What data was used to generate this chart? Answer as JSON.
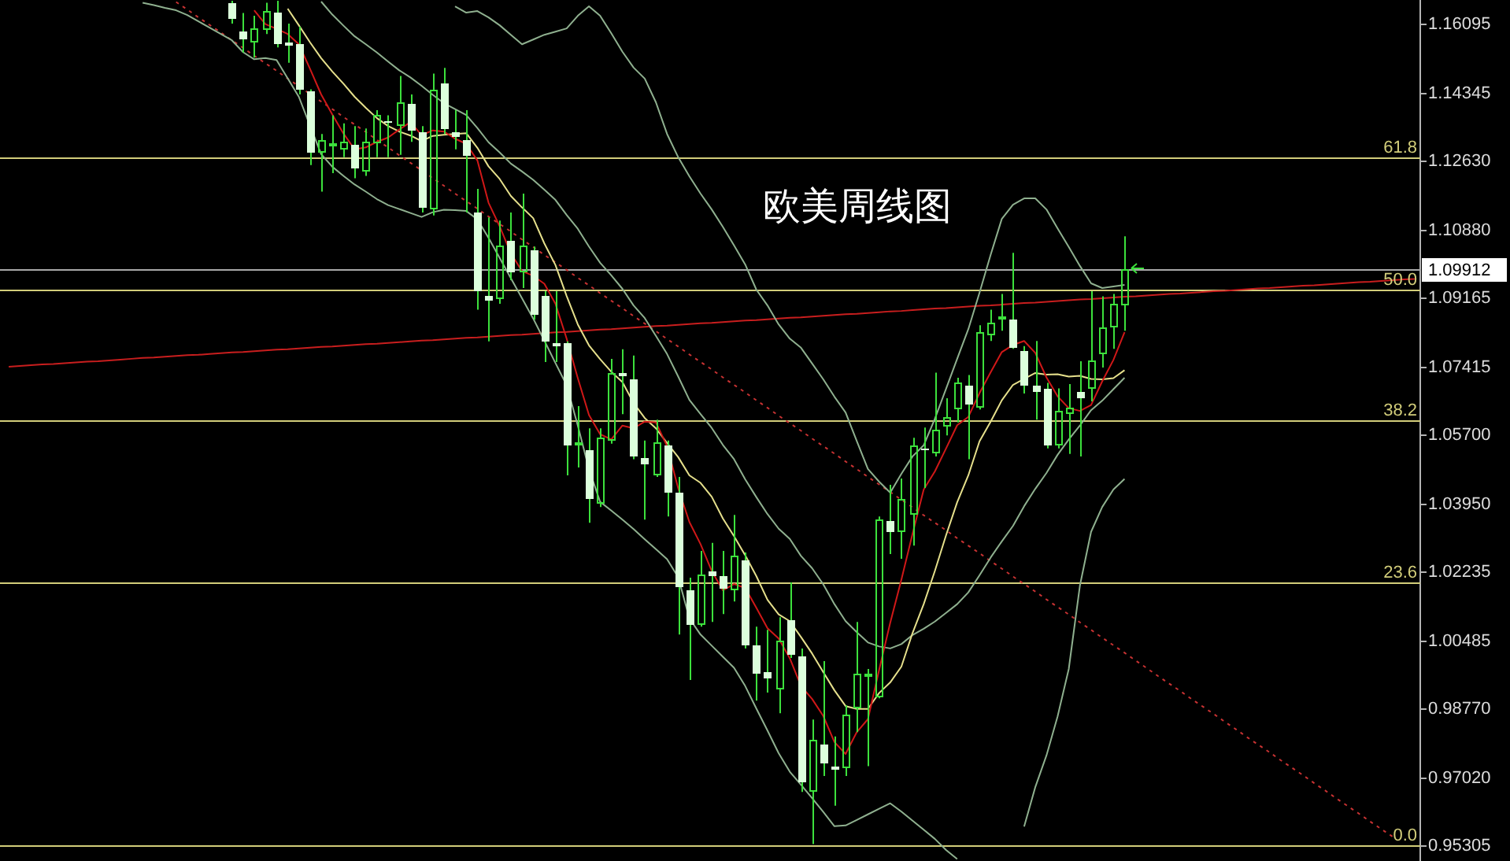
{
  "chart_data": {
    "type": "candlestick",
    "title": "欧美周线图",
    "categories": [
      null,
      null,
      null,
      null,
      null,
      null,
      null,
      null,
      null,
      null,
      null,
      null,
      null,
      null,
      null,
      null,
      null,
      null,
      null,
      null,
      null,
      null,
      null,
      null,
      null,
      null,
      null,
      null,
      null,
      null,
      null,
      null,
      null,
      null,
      null,
      null,
      null,
      null,
      null,
      null,
      null,
      null,
      null,
      null,
      null,
      null,
      null,
      null,
      null,
      null,
      null,
      null,
      null,
      null,
      null,
      null,
      null,
      null,
      null,
      null,
      null,
      null,
      null,
      null,
      null,
      null,
      null,
      null,
      null,
      null,
      null,
      null,
      null,
      null,
      null,
      null,
      null,
      null,
      null,
      null,
      null,
      null,
      null,
      null,
      null,
      null,
      null,
      null,
      null,
      null,
      null,
      null,
      null,
      null,
      null,
      null,
      null,
      null,
      null,
      null,
      null,
      null,
      null,
      null,
      null,
      null,
      null,
      null,
      null,
      null,
      null,
      null,
      null,
      null,
      null,
      null,
      null,
      null,
      null,
      null,
      null,
      null,
      null,
      null,
      null,
      null,
      null
    ],
    "ohlc": [
      null,
      null,
      null,
      null,
      null,
      null,
      null,
      null,
      null,
      null,
      null,
      null,
      null,
      null,
      null,
      null,
      null,
      null,
      null,
      null,
      [
        1.1666,
        1.167,
        1.1612,
        1.1623
      ],
      [
        1.1592,
        1.1639,
        1.1539,
        1.1572
      ],
      [
        1.1566,
        1.1632,
        1.1526,
        1.1599
      ],
      [
        1.1595,
        1.1665,
        1.1586,
        1.1643
      ],
      [
        1.1639,
        1.167,
        1.1552,
        1.1559
      ],
      [
        1.1566,
        1.1612,
        1.1513,
        1.1555
      ],
      [
        1.1559,
        1.1605,
        1.1433,
        1.1446
      ],
      [
        1.144,
        1.1446,
        1.1254,
        1.1287
      ],
      [
        1.1287,
        1.1333,
        1.1187,
        1.1316
      ],
      [
        1.1305,
        1.138,
        1.1234,
        1.1308
      ],
      [
        1.1294,
        1.136,
        1.1274,
        1.1313
      ],
      [
        1.1307,
        1.1353,
        1.1221,
        1.1247
      ],
      [
        1.1237,
        1.1347,
        1.1227,
        1.1313
      ],
      [
        1.1311,
        1.1393,
        1.1274,
        1.1382
      ],
      [
        1.1366,
        1.138,
        1.1274,
        1.1363
      ],
      [
        1.1353,
        1.148,
        1.128,
        1.1413
      ],
      [
        1.1409,
        1.1433,
        1.1313,
        1.1343
      ],
      [
        1.1337,
        1.1353,
        1.1134,
        1.1147
      ],
      [
        1.1141,
        1.1486,
        1.1127,
        1.1446
      ],
      [
        1.146,
        1.15,
        1.1333,
        1.1347
      ],
      [
        1.1337,
        1.1393,
        1.1294,
        1.1324
      ],
      [
        1.1316,
        1.1393,
        1.1134,
        1.1276
      ],
      [
        1.1134,
        1.1194,
        1.0888,
        1.0935
      ],
      [
        1.0923,
        1.1122,
        1.0808,
        1.0911
      ],
      [
        1.0915,
        1.1114,
        1.0903,
        1.1051
      ],
      [
        1.1062,
        1.1134,
        1.0963,
        1.0983
      ],
      [
        1.0984,
        1.1182,
        1.0943,
        1.1051
      ],
      [
        1.1037,
        1.1048,
        1.0863,
        1.0875
      ],
      [
        1.0923,
        1.0935,
        1.0756,
        1.0809
      ],
      [
        1.0804,
        1.0935,
        1.0756,
        1.0796
      ],
      [
        1.0804,
        1.0808,
        1.0469,
        1.0545
      ],
      [
        1.0547,
        1.0644,
        1.0489,
        1.0551
      ],
      [
        1.0533,
        1.0588,
        1.0349,
        1.0409
      ],
      [
        1.0397,
        1.0588,
        1.0389,
        1.0564
      ],
      [
        1.0557,
        1.0764,
        1.0549,
        1.0729
      ],
      [
        1.0728,
        1.0788,
        1.0624,
        1.072
      ],
      [
        1.0713,
        1.0772,
        1.051,
        1.0517
      ],
      [
        1.0514,
        1.0557,
        1.0357,
        1.0497
      ],
      [
        1.047,
        1.061,
        1.0465,
        1.0554
      ],
      [
        1.0545,
        1.0557,
        1.0365,
        1.0426
      ],
      [
        1.0425,
        1.0465,
        1.0066,
        1.0186
      ],
      [
        1.0178,
        1.021,
        0.9951,
        1.009
      ],
      [
        1.009,
        1.0278,
        1.0086,
        1.0218
      ],
      [
        1.0226,
        1.0298,
        1.0098,
        1.0214
      ],
      [
        1.0214,
        1.0278,
        1.0118,
        1.0182
      ],
      [
        1.0178,
        1.0369,
        1.015,
        1.0266
      ],
      [
        1.0254,
        1.0274,
        1.0031,
        1.0039
      ],
      [
        1.0039,
        1.0086,
        0.9899,
        0.9967
      ],
      [
        0.9971,
        1.0078,
        0.9919,
        0.9956
      ],
      [
        0.9927,
        1.011,
        0.9867,
        1.0051
      ],
      [
        1.0102,
        1.0198,
        1.0007,
        1.0015
      ],
      [
        1.0011,
        1.0031,
        0.9668,
        0.9693
      ],
      [
        0.9668,
        0.9851,
        0.9536,
        0.98
      ],
      [
        0.9788,
        0.9999,
        0.9708,
        0.974
      ],
      [
        0.9733,
        0.9808,
        0.9633,
        0.9723
      ],
      [
        0.9728,
        0.9887,
        0.9708,
        0.9863
      ],
      [
        0.9879,
        1.0098,
        0.9819,
        0.9967
      ],
      [
        0.9966,
        0.9979,
        0.9733,
        0.9968
      ],
      [
        0.9907,
        1.0365,
        0.9905,
        1.0357
      ],
      [
        1.0353,
        1.0445,
        1.027,
        1.0325
      ],
      [
        1.0324,
        1.0461,
        1.0258,
        1.041
      ],
      [
        1.037,
        1.0564,
        1.0291,
        1.0543
      ],
      [
        1.0535,
        1.059,
        1.0437,
        1.0532
      ],
      [
        1.0523,
        1.0729,
        1.0517,
        1.0586
      ],
      [
        1.0592,
        1.0664,
        1.057,
        1.0616
      ],
      [
        1.0636,
        1.0716,
        1.0603,
        1.0703
      ],
      [
        1.0696,
        1.0723,
        1.051,
        1.0647
      ],
      [
        1.0639,
        1.0849,
        1.0636,
        1.0831
      ],
      [
        1.0822,
        1.0888,
        1.0809,
        1.0855
      ],
      [
        1.0867,
        1.0928,
        1.0835,
        1.087
      ],
      [
        1.0864,
        1.1032,
        1.0789,
        1.0793
      ],
      [
        1.0782,
        1.0796,
        1.0676,
        1.0696
      ],
      [
        1.0695,
        1.0809,
        1.061,
        1.0681
      ],
      [
        1.0687,
        1.0703,
        1.0537,
        1.0543
      ],
      [
        1.0543,
        1.0689,
        1.0537,
        1.0633
      ],
      [
        1.0623,
        1.07,
        1.0523,
        1.064
      ],
      [
        1.068,
        1.0758,
        1.0517,
        1.0663
      ],
      [
        1.0689,
        1.0935,
        1.0656,
        1.0758
      ],
      [
        1.0776,
        1.0922,
        1.0742,
        1.0842
      ],
      [
        1.0842,
        1.0928,
        1.0789,
        1.0902
      ],
      [
        1.0898,
        1.1074,
        1.0835,
        1.09912
      ],
      null,
      null,
      null,
      null,
      null,
      null,
      null,
      null,
      null,
      null,
      null,
      null,
      null,
      null,
      null,
      null,
      null,
      null,
      null,
      null,
      null,
      null,
      null,
      null,
      null,
      null
    ],
    "color": "#3ce03c",
    "colors": [
      null,
      null,
      null,
      null,
      null,
      null,
      null,
      null,
      null,
      null,
      null,
      null,
      null,
      null,
      null,
      null,
      null,
      null,
      null,
      null,
      "#dcffdc",
      "#dcffdc",
      "#3ce03c",
      "#3ce03c",
      "#dcffdc",
      "#dcffdc",
      "#dcffdc",
      "#dcffdc",
      "#3ce03c",
      "#3ce03c",
      "#3ce03c",
      "#dcffdc",
      "#3ce03c",
      "#3ce03c",
      "#dcffdc",
      "#3ce03c",
      "#dcffdc",
      "#dcffdc",
      "#3ce03c",
      "#dcffdc",
      "#dcffdc",
      "#dcffdc",
      "#dcffdc",
      "#dcffdc",
      "#3ce03c",
      "#dcffdc",
      "#3ce03c",
      "#dcffdc",
      "#dcffdc",
      "#dcffdc",
      "#dcffdc",
      "#3ce03c",
      "#dcffdc",
      "#3ce03c",
      "#3ce03c",
      "#dcffdc",
      "#dcffdc",
      "#dcffdc",
      "#3ce03c",
      "#dcffdc",
      "#dcffdc",
      "#dcffdc",
      "#3ce03c",
      "#dcffdc",
      "#dcffdc",
      "#3ce03c",
      "#dcffdc",
      "#dcffdc",
      "#dcffdc",
      "#3ce03c",
      "#dcffdc",
      "#dcffdc",
      "#3ce03c",
      "#dcffdc",
      "#dcffdc",
      "#3ce03c",
      "#3ce03c",
      "#3ce03c",
      "#3ce03c",
      "#dcffdc",
      "#3ce03c",
      "#3ce03c",
      "#dcffdc",
      "#3ce03c",
      "#3ce03c",
      "#3ce03c",
      "#dcffdc",
      "#3ce03c",
      "#3ce03c",
      "#3ce03c",
      "#dcffdc",
      "#dcffdc",
      "#dcffdc",
      "#dcffdc",
      "#3ce03c",
      "#3ce03c",
      "#dcffdc",
      "#3ce03c",
      "#3ce03c",
      "#3ce03c",
      "#3ce03c",
      null,
      null,
      null,
      null,
      null,
      null,
      null,
      null,
      null,
      null,
      null,
      null,
      null,
      null,
      null,
      null,
      null,
      null,
      null,
      null,
      null,
      null,
      null,
      null,
      null,
      null
    ],
    "series": [
      {
        "type": "line",
        "color": "#d01818",
        "values": [
          null,
          null,
          null,
          null,
          null,
          null,
          null,
          null,
          null,
          null,
          null,
          null,
          null,
          null,
          null,
          null,
          null,
          null,
          null,
          null,
          null,
          null,
          1.1646,
          1.1611,
          1.1599,
          1.1586,
          1.156,
          1.1498,
          1.1433,
          1.1382,
          1.1334,
          1.1294,
          1.1299,
          1.1313,
          1.1324,
          1.1344,
          1.1363,
          1.133,
          1.1342,
          1.1339,
          1.1321,
          1.1308,
          1.1266,
          1.1159,
          1.1099,
          1.1031,
          1.0986,
          1.0974,
          1.0954,
          1.0903,
          1.0815,
          1.0715,
          1.0622,
          1.0573,
          1.056,
          1.0595,
          1.0588,
          1.0605,
          1.0603,
          1.0543,
          1.0436,
          1.0351,
          1.0295,
          1.0227,
          1.0178,
          1.0194,
          1.0184,
          1.0134,
          1.0082,
          1.0056,
          1.0006,
          0.9936,
          0.9903,
          0.986,
          0.9794,
          0.9764,
          0.9819,
          0.9852,
          0.9976,
          1.0096,
          1.0205,
          1.0321,
          1.0433,
          1.0479,
          1.0537,
          1.0596,
          1.0617,
          1.0677,
          1.073,
          1.0781,
          1.0799,
          1.0809,
          1.0779,
          1.0717,
          1.0669,
          1.0639,
          1.0632,
          1.0647,
          1.0707,
          1.0761,
          1.0831,
          null,
          null,
          null,
          null,
          null,
          null,
          null,
          null,
          null,
          null,
          null,
          null,
          null,
          null,
          null,
          null,
          null,
          null,
          null,
          null,
          null,
          null,
          null,
          null,
          null,
          null
        ]
      },
      {
        "type": "line",
        "color": "#e6e08c",
        "values": [
          null,
          null,
          null,
          null,
          null,
          null,
          null,
          null,
          null,
          null,
          null,
          null,
          null,
          null,
          null,
          null,
          null,
          null,
          null,
          null,
          null,
          null,
          null,
          null,
          null,
          1.165,
          1.1608,
          1.1565,
          1.1525,
          1.1491,
          1.146,
          1.1427,
          1.1399,
          1.1373,
          1.1353,
          1.1339,
          1.1329,
          1.1315,
          1.1328,
          1.1331,
          1.1333,
          1.1335,
          1.1298,
          1.1251,
          1.1219,
          1.1176,
          1.1147,
          1.112,
          1.1056,
          1.1001,
          1.0923,
          1.0851,
          1.0798,
          1.0763,
          1.0731,
          1.0705,
          1.0652,
          1.0614,
          1.0588,
          1.0551,
          1.0515,
          1.0469,
          1.045,
          1.0415,
          1.036,
          1.0315,
          1.0267,
          1.0214,
          1.0154,
          1.0117,
          1.01,
          1.006,
          1.0018,
          0.9971,
          0.9925,
          0.9885,
          0.9878,
          0.9878,
          0.9918,
          0.9945,
          0.9985,
          1.007,
          1.0143,
          1.0227,
          1.0317,
          1.0401,
          1.0469,
          1.0555,
          1.0605,
          1.0659,
          1.0698,
          1.0713,
          1.0728,
          1.0724,
          1.0725,
          1.0719,
          1.0721,
          1.0713,
          1.0712,
          1.0715,
          1.0735,
          null,
          null,
          null,
          null,
          null,
          null,
          null,
          null,
          null,
          null,
          null,
          null,
          null,
          null,
          null,
          null,
          null,
          null,
          null,
          null,
          null,
          null,
          null,
          null,
          null,
          null
        ]
      },
      {
        "type": "line",
        "color": "#8fb08f",
        "values": [
          null,
          null,
          null,
          null,
          null,
          null,
          null,
          null,
          null,
          null,
          null,
          null,
          null,
          null,
          null,
          null,
          null,
          null,
          null,
          null,
          null,
          null,
          null,
          null,
          null,
          null,
          null,
          null,
          1.1668,
          1.1635,
          1.1607,
          1.158,
          1.156,
          1.1539,
          1.1516,
          1.1494,
          1.1476,
          1.1455,
          1.1432,
          1.1411,
          1.1396,
          1.1381,
          1.1348,
          1.1312,
          1.1286,
          1.1258,
          1.1238,
          1.1217,
          1.1192,
          1.1166,
          1.1128,
          1.1093,
          1.1048,
          1.1007,
          1.0975,
          1.0941,
          1.0899,
          1.0867,
          1.0822,
          1.0776,
          1.0719,
          1.066,
          1.0624,
          1.0589,
          1.0546,
          1.051,
          1.0459,
          1.0414,
          1.0371,
          1.0334,
          1.0308,
          1.0265,
          1.0234,
          1.0193,
          1.0143,
          1.01,
          1.0072,
          1.0046,
          1.0036,
          1.0031,
          1.0042,
          1.0065,
          1.0081,
          1.0099,
          1.0121,
          1.0143,
          1.0173,
          1.0216,
          1.0261,
          1.0302,
          1.0341,
          1.0391,
          1.0435,
          1.0475,
          1.0521,
          1.056,
          1.0595,
          1.0634,
          1.0658,
          1.0687,
          1.0716,
          null,
          null,
          null,
          null,
          null,
          null,
          null,
          null,
          null,
          null,
          null,
          null,
          null,
          null,
          null,
          null,
          null,
          null,
          null,
          null,
          null,
          null,
          null,
          null,
          null,
          null
        ]
      },
      {
        "type": "line",
        "color": "#8fb08f",
        "values": [
          null,
          null,
          null,
          null,
          null,
          null,
          null,
          null,
          null,
          null,
          null,
          null,
          null,
          null,
          null,
          null,
          null,
          null,
          null,
          null,
          null,
          null,
          null,
          null,
          null,
          null,
          null,
          null,
          null,
          null,
          null,
          null,
          null,
          null,
          null,
          null,
          null,
          null,
          null,
          null,
          1.1656,
          1.164,
          1.1644,
          1.1628,
          1.1608,
          1.1584,
          1.156,
          1.1572,
          1.1584,
          1.1592,
          1.16,
          1.1632,
          1.1656,
          1.1632,
          1.1588,
          1.1541,
          1.1501,
          1.1473,
          1.1413,
          1.1333,
          1.1274,
          1.1226,
          1.1182,
          1.1142,
          1.1098,
          1.1051,
          1.1003,
          1.0939,
          1.0899,
          1.0851,
          1.0815,
          1.0792,
          1.0752,
          1.0712,
          1.0668,
          1.0628,
          1.0556,
          1.0485,
          1.0453,
          1.0425,
          1.0473,
          1.0517,
          1.0545,
          1.0612,
          1.0688,
          1.0764,
          1.0839,
          1.0931,
          1.1027,
          1.1118,
          1.1154,
          1.117,
          1.117,
          1.1142,
          1.1094,
          1.1047,
          1.0999,
          1.0955,
          1.0943,
          1.0947,
          1.0951,
          null,
          null,
          null,
          null,
          null,
          null,
          null,
          null,
          null,
          null,
          null,
          null,
          null,
          null,
          null,
          null,
          null,
          null,
          null,
          null,
          null,
          null,
          null,
          null,
          null,
          null
        ]
      },
      {
        "type": "line",
        "color": "#8fb08f",
        "values": [
          null,
          null,
          null,
          null,
          null,
          null,
          null,
          null,
          null,
          null,
          null,
          null,
          1.1665,
          1.1659,
          1.1652,
          1.1646,
          1.1634,
          1.1618,
          1.1602,
          1.1586,
          1.157,
          1.154,
          1.1522,
          1.1525,
          1.152,
          1.1474,
          1.1427,
          1.1354,
          1.1282,
          1.125,
          1.1227,
          1.1205,
          1.1187,
          1.1168,
          1.1153,
          1.1143,
          1.1133,
          1.1123,
          1.1135,
          1.1141,
          1.114,
          1.1138,
          1.1117,
          1.107,
          1.1019,
          1.0968,
          1.0917,
          1.0866,
          1.081,
          1.0753,
          1.0697,
          1.0595,
          1.0485,
          1.0402,
          1.038,
          1.0357,
          1.0333,
          1.0307,
          1.0282,
          1.0257,
          1.0211,
          1.0107,
          1.0066,
          1.0038,
          1.001,
          0.9982,
          0.9936,
          0.9879,
          0.9823,
          0.9766,
          0.9719,
          0.9686,
          0.9652,
          0.9617,
          0.9581,
          0.9583,
          0.9597,
          0.9611,
          0.9625,
          0.9639,
          0.9618,
          0.9595,
          0.9572,
          0.9549,
          0.9521,
          0.9498,
          null,
          null,
          null,
          null,
          null,
          0.958,
          0.968,
          0.976,
          0.9859,
          0.9979,
          1.019,
          1.0326,
          1.0389,
          1.0433,
          1.046,
          null,
          null,
          null,
          null,
          null,
          null,
          null,
          null,
          null,
          null,
          null,
          null,
          null,
          null,
          null,
          null,
          null,
          null,
          null,
          null,
          null,
          null,
          null,
          null,
          null,
          null
        ]
      },
      {
        "type": "line",
        "color": "#c81e1e",
        "values": [
          1.0744,
          1.0746,
          1.0748,
          1.075,
          1.0751,
          1.0753,
          1.0755,
          1.0757,
          1.0758,
          1.076,
          1.0762,
          1.0764,
          1.0766,
          1.0767,
          1.0769,
          1.0771,
          1.0773,
          1.0774,
          1.0776,
          1.0778,
          1.078,
          1.0781,
          1.0783,
          1.0785,
          1.0787,
          1.0788,
          1.079,
          1.0792,
          1.0794,
          1.0795,
          1.0797,
          1.0799,
          1.0801,
          1.0802,
          1.0804,
          1.0806,
          1.0808,
          1.081,
          1.0811,
          1.0813,
          1.0815,
          1.0817,
          1.0818,
          1.082,
          1.0822,
          1.0824,
          1.0825,
          1.0827,
          1.0829,
          1.0831,
          1.0832,
          1.0834,
          1.0836,
          1.0838,
          1.0839,
          1.0841,
          1.0843,
          1.0845,
          1.0847,
          1.0848,
          1.085,
          1.0852,
          1.0854,
          1.0855,
          1.0857,
          1.0859,
          1.0861,
          1.0862,
          1.0864,
          1.0866,
          1.0868,
          1.0869,
          1.0871,
          1.0873,
          1.0875,
          1.0877,
          1.0878,
          1.088,
          1.0882,
          1.0884,
          1.0885,
          1.0887,
          1.0889,
          1.0891,
          1.0892,
          1.0894,
          1.0896,
          1.0898,
          1.0899,
          1.0901,
          1.0903,
          1.0905,
          1.0906,
          1.0908,
          1.091,
          1.0912,
          1.0914,
          1.0915,
          1.0917,
          1.0919,
          1.0921,
          1.0922,
          1.0924,
          1.0926,
          1.0928,
          1.0929,
          1.0931,
          1.0933,
          1.0935,
          1.0936,
          1.0938,
          1.094,
          1.0942,
          1.0943,
          1.0945,
          1.0947,
          1.0949,
          1.095,
          1.0952,
          1.0954,
          1.0956,
          1.0958,
          1.0959,
          1.0961,
          1.0963,
          1.0965,
          1.0966
        ]
      },
      {
        "type": "line",
        "color": "#c83232",
        "line_style": "dotted",
        "values": [
          null,
          null,
          null,
          null,
          null,
          null,
          null,
          null,
          null,
          null,
          null,
          null,
          null,
          null,
          null,
          1.1667,
          1.1648,
          1.1628,
          1.1609,
          1.159,
          1.157,
          1.1551,
          1.1531,
          1.1512,
          1.1493,
          1.1473,
          1.1454,
          1.1434,
          1.1415,
          1.1396,
          1.1376,
          1.1357,
          1.1338,
          1.1318,
          1.1299,
          1.1279,
          1.126,
          1.1241,
          1.1221,
          1.1202,
          1.1182,
          1.1163,
          1.1144,
          1.1124,
          1.1105,
          1.1086,
          1.1066,
          1.1047,
          1.1027,
          1.1008,
          1.0989,
          1.0969,
          1.095,
          1.093,
          1.0911,
          1.0892,
          1.0872,
          1.0853,
          1.0834,
          1.0814,
          1.0795,
          1.0775,
          1.0756,
          1.0737,
          1.0717,
          1.0698,
          1.0679,
          1.0659,
          1.064,
          1.062,
          1.0601,
          1.0582,
          1.0562,
          1.0543,
          1.0524,
          1.0504,
          1.0485,
          1.0465,
          1.0446,
          1.0427,
          1.0407,
          1.0388,
          1.0368,
          1.0349,
          1.033,
          1.031,
          1.0291,
          1.0272,
          1.0252,
          1.0233,
          1.0213,
          1.0194,
          1.0175,
          1.0155,
          1.0136,
          1.0117,
          1.0097,
          1.0078,
          1.0058,
          1.0039,
          1.002,
          1.0,
          0.9981,
          0.9961,
          0.9942,
          0.9923,
          0.9903,
          0.9884,
          0.9865,
          0.9845,
          0.9826,
          0.9806,
          0.9787,
          0.9768,
          0.9748,
          0.9729,
          0.971,
          0.969,
          0.9671,
          0.9651,
          0.9632,
          0.9613,
          0.9593,
          0.9574,
          0.9555,
          null,
          null
        ]
      }
    ],
    "ylim": [
      0.9493,
      1.1672
    ],
    "yticks": [
      0.95305,
      {
        "value": 0.9702,
        "label": "0.97020"
      },
      {
        "value": 0.9877,
        "label": "0.98770"
      },
      1.00485,
      1.02235,
      {
        "value": 1.0395,
        "label": "1.03950"
      },
      {
        "value": 1.057,
        "label": "1.05700"
      },
      1.07415,
      1.09165,
      {
        "value": 1.1088,
        "label": "1.10880"
      },
      {
        "value": 1.1263,
        "label": "1.12630"
      },
      1.14345,
      1.16095
    ],
    "y2lim": [
      -1.4,
      76.0
    ],
    "ref_lines": [
      {
        "axis": "y2",
        "value": 61.8,
        "label": "61.8",
        "color": "#d2cd7a"
      },
      {
        "axis": "y2",
        "value": 50,
        "label": "50.0",
        "color": "#d2cd7a"
      },
      {
        "axis": "y2",
        "value": 38.2,
        "label": "38.2",
        "color": "#d2cd7a"
      },
      {
        "axis": "y2",
        "value": 23.6,
        "label": "23.6",
        "color": "#d2cd7a"
      },
      {
        "axis": "y2",
        "value": 0,
        "label": "0.0",
        "color": "#d2cd7a"
      },
      {
        "axis": "y",
        "value": 1.09912,
        "label": "1.09912",
        "color": "#a8a8a8"
      }
    ],
    "grid": false,
    "legend": false,
    "tick_labels": "y",
    "marker": "none",
    "line_style": "solid"
  }
}
